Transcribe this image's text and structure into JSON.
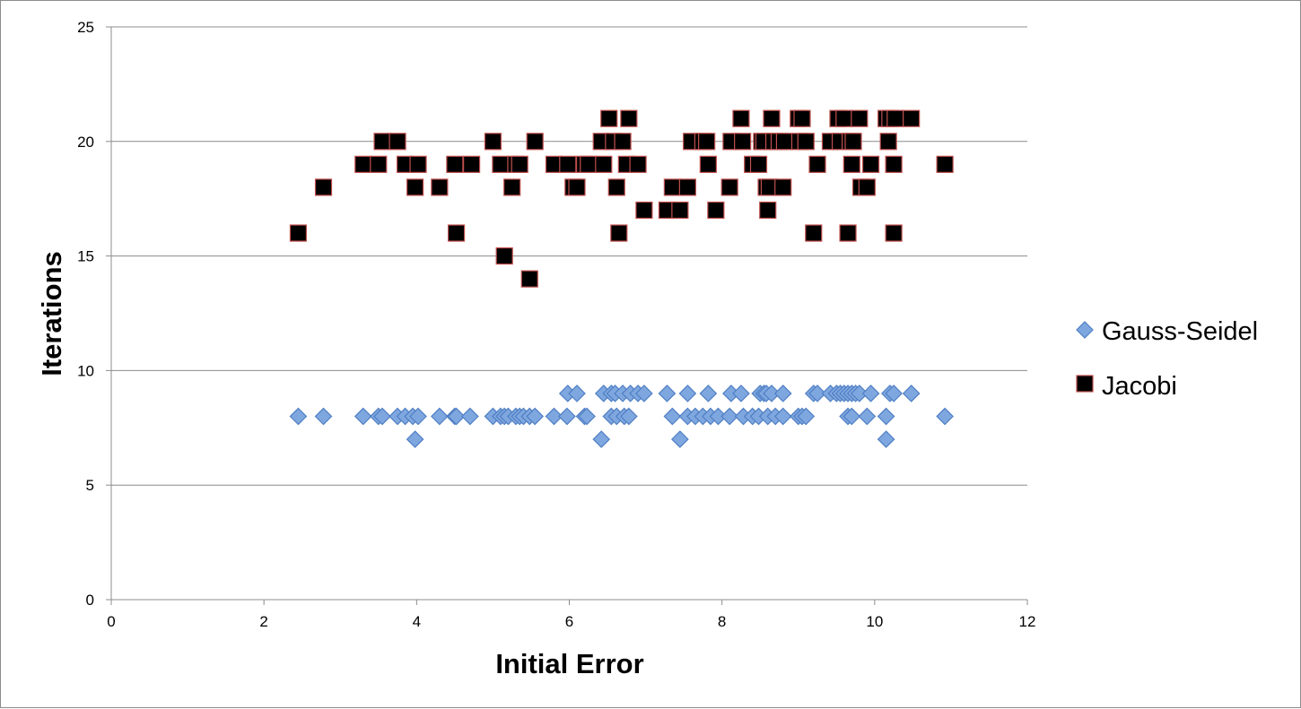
{
  "chart_data": {
    "type": "scatter",
    "xlabel": "Initial Error",
    "ylabel": "Iterations",
    "xlim": [
      0,
      12
    ],
    "ylim": [
      0,
      25
    ],
    "x_ticks": [
      0,
      2,
      4,
      6,
      8,
      10,
      12
    ],
    "y_ticks": [
      0,
      5,
      10,
      15,
      20,
      25
    ],
    "grid": "horizontal",
    "legend_position": "right",
    "series": [
      {
        "name": "Gauss-Seidel",
        "marker": "diamond",
        "color": "#7fa7df",
        "edge_color": "#4f7fc4",
        "points": [
          [
            2.45,
            8
          ],
          [
            2.78,
            8
          ],
          [
            3.3,
            8
          ],
          [
            3.5,
            8
          ],
          [
            3.55,
            8
          ],
          [
            3.75,
            8
          ],
          [
            3.85,
            8
          ],
          [
            3.95,
            8
          ],
          [
            3.98,
            7
          ],
          [
            4.02,
            8
          ],
          [
            4.3,
            8
          ],
          [
            4.5,
            8
          ],
          [
            4.52,
            8
          ],
          [
            4.7,
            8
          ],
          [
            5.0,
            8
          ],
          [
            5.1,
            8
          ],
          [
            5.15,
            8
          ],
          [
            5.2,
            8
          ],
          [
            5.3,
            8
          ],
          [
            5.35,
            8
          ],
          [
            5.4,
            8
          ],
          [
            5.48,
            8
          ],
          [
            5.55,
            8
          ],
          [
            5.8,
            8
          ],
          [
            5.97,
            8
          ],
          [
            5.98,
            9
          ],
          [
            6.1,
            9
          ],
          [
            6.2,
            8
          ],
          [
            6.23,
            8
          ],
          [
            6.42,
            7
          ],
          [
            6.45,
            9
          ],
          [
            6.55,
            9
          ],
          [
            6.55,
            8
          ],
          [
            6.6,
            9
          ],
          [
            6.62,
            8
          ],
          [
            6.7,
            9
          ],
          [
            6.72,
            8
          ],
          [
            6.78,
            8
          ],
          [
            6.8,
            9
          ],
          [
            6.9,
            9
          ],
          [
            6.98,
            9
          ],
          [
            7.28,
            9
          ],
          [
            7.35,
            8
          ],
          [
            7.45,
            7
          ],
          [
            7.55,
            9
          ],
          [
            7.55,
            8
          ],
          [
            7.65,
            8
          ],
          [
            7.75,
            8
          ],
          [
            7.82,
            9
          ],
          [
            7.85,
            8
          ],
          [
            7.95,
            8
          ],
          [
            8.1,
            8
          ],
          [
            8.12,
            9
          ],
          [
            8.25,
            9
          ],
          [
            8.28,
            8
          ],
          [
            8.4,
            8
          ],
          [
            8.48,
            8
          ],
          [
            8.5,
            9
          ],
          [
            8.55,
            9
          ],
          [
            8.58,
            9
          ],
          [
            8.6,
            8
          ],
          [
            8.65,
            9
          ],
          [
            8.7,
            8
          ],
          [
            8.8,
            9
          ],
          [
            8.8,
            8
          ],
          [
            9.0,
            8
          ],
          [
            9.05,
            8
          ],
          [
            9.1,
            8
          ],
          [
            9.2,
            9
          ],
          [
            9.25,
            9
          ],
          [
            9.42,
            9
          ],
          [
            9.5,
            9
          ],
          [
            9.55,
            9
          ],
          [
            9.6,
            9
          ],
          [
            9.65,
            9
          ],
          [
            9.65,
            8
          ],
          [
            9.7,
            9
          ],
          [
            9.7,
            8
          ],
          [
            9.75,
            9
          ],
          [
            9.8,
            9
          ],
          [
            9.9,
            8
          ],
          [
            9.95,
            9
          ],
          [
            10.15,
            8
          ],
          [
            10.15,
            7
          ],
          [
            10.2,
            9
          ],
          [
            10.25,
            9
          ],
          [
            10.48,
            9
          ],
          [
            10.92,
            8
          ]
        ]
      },
      {
        "name": "Jacobi",
        "marker": "square",
        "color": "#000000",
        "edge_color": "#c0504d",
        "points": [
          [
            2.45,
            16
          ],
          [
            2.78,
            18
          ],
          [
            3.3,
            19
          ],
          [
            3.5,
            19
          ],
          [
            3.55,
            20
          ],
          [
            3.75,
            20
          ],
          [
            3.85,
            19
          ],
          [
            3.98,
            18
          ],
          [
            4.02,
            19
          ],
          [
            4.3,
            18
          ],
          [
            4.5,
            19
          ],
          [
            4.52,
            16
          ],
          [
            4.72,
            19
          ],
          [
            5.0,
            20
          ],
          [
            5.1,
            19
          ],
          [
            5.15,
            15
          ],
          [
            5.25,
            18
          ],
          [
            5.3,
            19
          ],
          [
            5.35,
            19
          ],
          [
            5.48,
            14
          ],
          [
            5.55,
            20
          ],
          [
            5.8,
            19
          ],
          [
            5.98,
            19
          ],
          [
            6.05,
            18
          ],
          [
            6.1,
            18
          ],
          [
            6.2,
            19
          ],
          [
            6.25,
            19
          ],
          [
            6.42,
            20
          ],
          [
            6.45,
            19
          ],
          [
            6.52,
            21
          ],
          [
            6.58,
            20
          ],
          [
            6.62,
            18
          ],
          [
            6.65,
            16
          ],
          [
            6.7,
            20
          ],
          [
            6.75,
            19
          ],
          [
            6.78,
            21
          ],
          [
            6.9,
            19
          ],
          [
            6.98,
            17
          ],
          [
            7.28,
            17
          ],
          [
            7.35,
            18
          ],
          [
            7.45,
            17
          ],
          [
            7.55,
            18
          ],
          [
            7.6,
            20
          ],
          [
            7.75,
            20
          ],
          [
            7.8,
            20
          ],
          [
            7.82,
            19
          ],
          [
            7.92,
            17
          ],
          [
            8.1,
            18
          ],
          [
            8.12,
            20
          ],
          [
            8.25,
            21
          ],
          [
            8.27,
            20
          ],
          [
            8.4,
            19
          ],
          [
            8.48,
            19
          ],
          [
            8.52,
            20
          ],
          [
            8.55,
            20
          ],
          [
            8.58,
            18
          ],
          [
            8.6,
            17
          ],
          [
            8.62,
            18
          ],
          [
            8.65,
            21
          ],
          [
            8.68,
            20
          ],
          [
            8.75,
            20
          ],
          [
            8.8,
            18
          ],
          [
            8.82,
            20
          ],
          [
            9.0,
            21
          ],
          [
            9.02,
            20
          ],
          [
            9.05,
            21
          ],
          [
            9.1,
            20
          ],
          [
            9.2,
            16
          ],
          [
            9.25,
            19
          ],
          [
            9.42,
            20
          ],
          [
            9.52,
            21
          ],
          [
            9.55,
            20
          ],
          [
            9.6,
            21
          ],
          [
            9.65,
            16
          ],
          [
            9.68,
            20
          ],
          [
            9.7,
            19
          ],
          [
            9.72,
            20
          ],
          [
            9.8,
            21
          ],
          [
            9.82,
            18
          ],
          [
            9.9,
            18
          ],
          [
            9.95,
            19
          ],
          [
            10.15,
            21
          ],
          [
            10.18,
            20
          ],
          [
            10.2,
            21
          ],
          [
            10.25,
            19
          ],
          [
            10.25,
            16
          ],
          [
            10.27,
            21
          ],
          [
            10.48,
            21
          ],
          [
            10.92,
            19
          ]
        ]
      }
    ]
  }
}
